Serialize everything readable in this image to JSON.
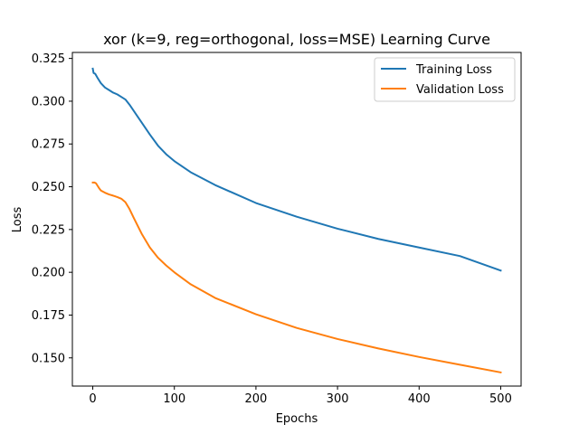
{
  "chart_data": {
    "type": "line",
    "title": "xor (k=9, reg=orthogonal, loss=MSE) Learning Curve",
    "xlabel": "Epochs",
    "ylabel": "Loss",
    "xlim": [
      -25,
      525
    ],
    "ylim": [
      0.1335,
      0.3285
    ],
    "xticks": [
      0,
      100,
      200,
      300,
      400,
      500
    ],
    "xtick_labels": [
      "0",
      "100",
      "200",
      "300",
      "400",
      "500"
    ],
    "yticks": [
      0.15,
      0.175,
      0.2,
      0.225,
      0.25,
      0.275,
      0.3,
      0.325
    ],
    "ytick_labels": [
      "0.150",
      "0.175",
      "0.200",
      "0.225",
      "0.250",
      "0.275",
      "0.300",
      "0.325"
    ],
    "grid": false,
    "legend_position": "top-right",
    "colors": {
      "training": "#1f77b4",
      "validation": "#ff7f0e"
    },
    "series": [
      {
        "name": "Training Loss",
        "x": [
          0,
          1,
          3,
          6,
          10,
          15,
          20,
          25,
          30,
          35,
          40,
          45,
          50,
          60,
          70,
          80,
          90,
          100,
          120,
          150,
          200,
          250,
          300,
          350,
          400,
          450,
          500
        ],
        "y": [
          0.319,
          0.3165,
          0.316,
          0.3135,
          0.3105,
          0.308,
          0.3065,
          0.305,
          0.304,
          0.3025,
          0.301,
          0.298,
          0.2945,
          0.2875,
          0.2805,
          0.274,
          0.269,
          0.265,
          0.2585,
          0.251,
          0.2405,
          0.2325,
          0.2255,
          0.2195,
          0.2145,
          0.2095,
          0.201
        ]
      },
      {
        "name": "Validation Loss",
        "x": [
          0,
          2,
          4,
          6,
          8,
          10,
          15,
          20,
          25,
          30,
          35,
          40,
          45,
          50,
          60,
          70,
          80,
          90,
          100,
          120,
          150,
          200,
          250,
          300,
          350,
          400,
          450,
          500
        ],
        "y": [
          0.2525,
          0.2525,
          0.252,
          0.2505,
          0.249,
          0.2478,
          0.2465,
          0.2455,
          0.2448,
          0.244,
          0.243,
          0.241,
          0.237,
          0.232,
          0.2225,
          0.2145,
          0.2085,
          0.204,
          0.2,
          0.193,
          0.185,
          0.1755,
          0.1675,
          0.161,
          0.1555,
          0.1505,
          0.146,
          0.1415
        ]
      }
    ]
  }
}
